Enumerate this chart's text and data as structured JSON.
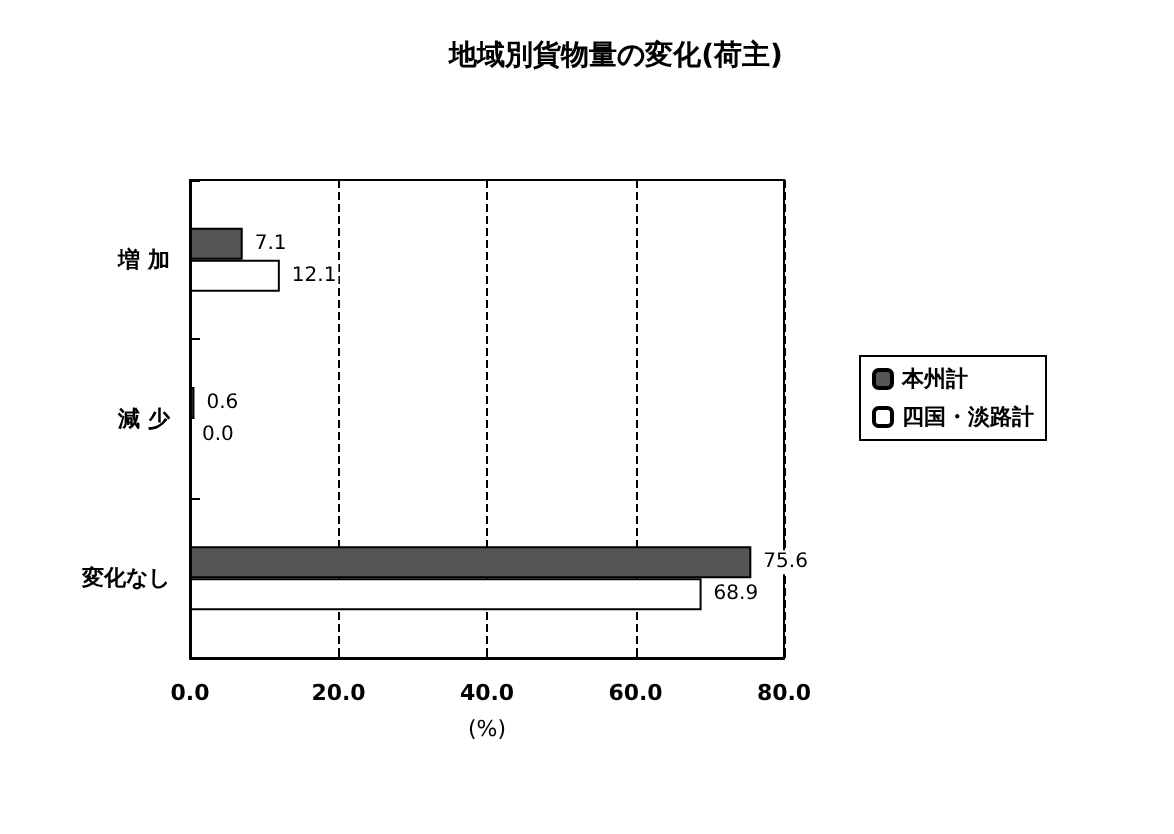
{
  "chart_data": {
    "type": "bar",
    "orientation": "horizontal",
    "title": "地域別貨物量の変化(荷主)",
    "xlabel": "(%)",
    "categories": [
      "増 加",
      "減 少",
      "変化なし"
    ],
    "series": [
      {
        "name": "本州計",
        "color": "#555555",
        "values": [
          7.1,
          0.6,
          75.6
        ],
        "value_labels": [
          "7.1",
          "0.6",
          "75.6"
        ]
      },
      {
        "name": "四国・淡路計",
        "color": "#ffffff",
        "values": [
          12.1,
          0.0,
          68.9
        ],
        "value_labels": [
          "12.1",
          "0.0",
          "68.9"
        ]
      }
    ],
    "xlim": [
      0,
      80
    ],
    "xticks": [
      {
        "value": 0,
        "label": "0.0"
      },
      {
        "value": 20,
        "label": "20.0"
      },
      {
        "value": 40,
        "label": "40.0"
      },
      {
        "value": 60,
        "label": "60.0"
      },
      {
        "value": 80,
        "label": "80.0"
      }
    ],
    "grid": "x",
    "legend": "right"
  }
}
